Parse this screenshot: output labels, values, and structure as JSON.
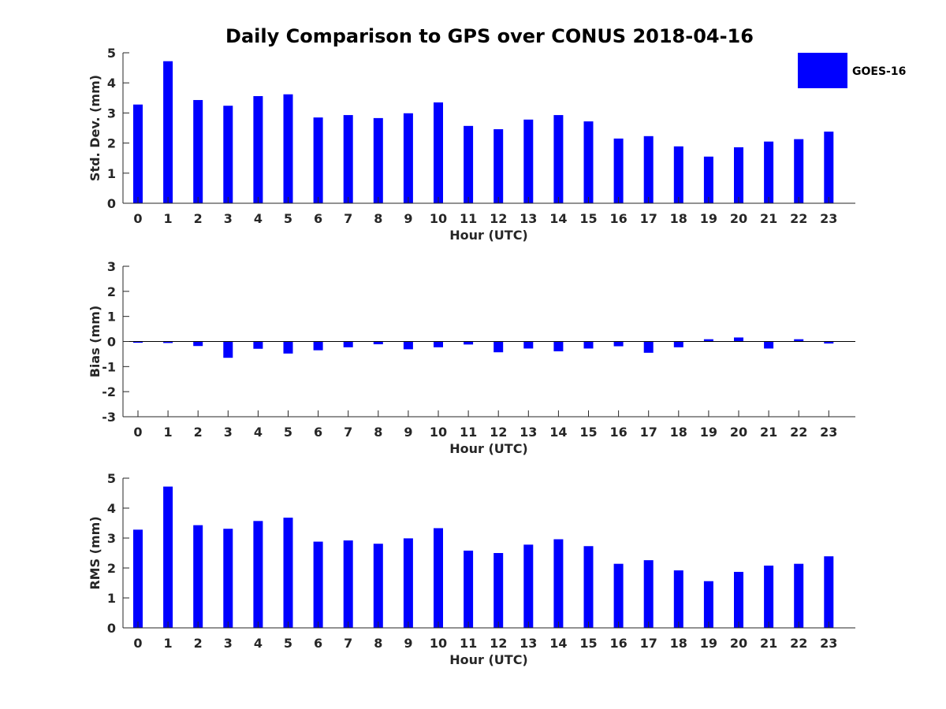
{
  "chart_data": {
    "title": "Daily Comparison to GPS over CONUS 2018-04-16",
    "legend": {
      "label": "GOES-16",
      "color": "#0000ff",
      "placement": "top-right"
    },
    "panels": [
      {
        "id": "std",
        "type": "bar",
        "ylabel": "Std. Dev. (mm)",
        "xlabel": "Hour (UTC)",
        "ylim": [
          0,
          5
        ],
        "yticks": [
          0,
          1,
          2,
          3,
          4,
          5
        ],
        "categories": [
          "0",
          "1",
          "2",
          "3",
          "4",
          "5",
          "6",
          "7",
          "8",
          "9",
          "10",
          "11",
          "12",
          "13",
          "14",
          "15",
          "16",
          "17",
          "18",
          "19",
          "20",
          "21",
          "22",
          "23"
        ],
        "series": [
          {
            "name": "GOES-16",
            "values": [
              3.28,
              4.72,
              3.43,
              3.24,
              3.56,
              3.62,
              2.85,
              2.93,
              2.83,
              2.99,
              3.35,
              2.57,
              2.46,
              2.78,
              2.93,
              2.72,
              2.15,
              2.23,
              1.89,
              1.55,
              1.86,
              2.05,
              2.13,
              2.38
            ]
          }
        ]
      },
      {
        "id": "bias",
        "type": "bar",
        "ylabel": "Bias (mm)",
        "xlabel": "Hour (UTC)",
        "ylim": [
          -3,
          3
        ],
        "yticks": [
          -3,
          -2,
          -1,
          0,
          1,
          2,
          3
        ],
        "categories": [
          "0",
          "1",
          "2",
          "3",
          "4",
          "5",
          "6",
          "7",
          "8",
          "9",
          "10",
          "11",
          "12",
          "13",
          "14",
          "15",
          "16",
          "17",
          "18",
          "19",
          "20",
          "21",
          "22",
          "23"
        ],
        "series": [
          {
            "name": "GOES-16",
            "values": [
              -0.05,
              -0.06,
              -0.18,
              -0.65,
              -0.29,
              -0.48,
              -0.35,
              -0.23,
              -0.11,
              -0.31,
              -0.23,
              -0.12,
              -0.43,
              -0.28,
              -0.39,
              -0.28,
              -0.19,
              -0.45,
              -0.23,
              0.09,
              0.16,
              -0.28,
              0.09,
              -0.08
            ]
          }
        ]
      },
      {
        "id": "rms",
        "type": "bar",
        "ylabel": "RMS (mm)",
        "xlabel": "Hour (UTC)",
        "ylim": [
          0,
          5
        ],
        "yticks": [
          0,
          1,
          2,
          3,
          4,
          5
        ],
        "categories": [
          "0",
          "1",
          "2",
          "3",
          "4",
          "5",
          "6",
          "7",
          "8",
          "9",
          "10",
          "11",
          "12",
          "13",
          "14",
          "15",
          "16",
          "17",
          "18",
          "19",
          "20",
          "21",
          "22",
          "23"
        ],
        "series": [
          {
            "name": "GOES-16",
            "values": [
              3.28,
              4.72,
              3.43,
              3.31,
              3.57,
              3.68,
              2.88,
              2.92,
              2.81,
              2.99,
              3.33,
              2.58,
              2.5,
              2.78,
              2.96,
              2.73,
              2.14,
              2.26,
              1.92,
              1.56,
              1.87,
              2.08,
              2.14,
              2.39
            ]
          }
        ]
      }
    ]
  }
}
